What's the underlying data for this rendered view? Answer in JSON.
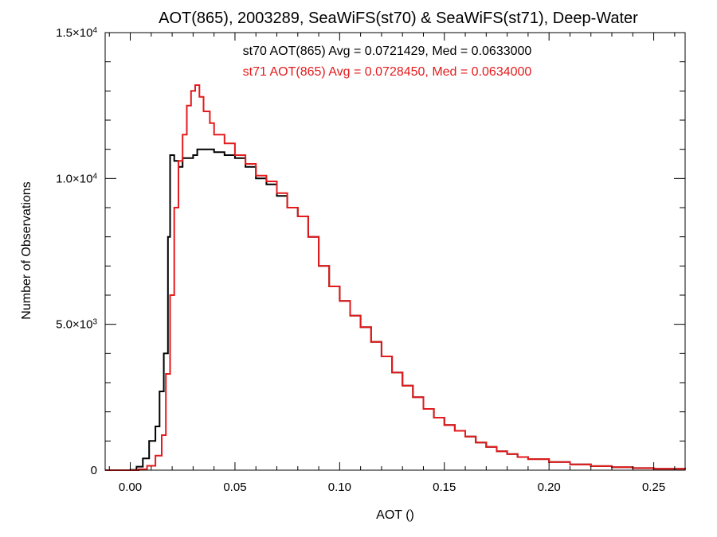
{
  "chart_data": {
    "type": "line",
    "title": "AOT(865), 2003289, SeaWiFS(st70) & SeaWiFS(st71), Deep-Water",
    "xlabel": "AOT ()",
    "ylabel": "Number of Observations",
    "xlim": [
      -0.012,
      0.265
    ],
    "ylim": [
      0,
      15000
    ],
    "x_ticks": [
      0.0,
      0.05,
      0.1,
      0.15,
      0.2,
      0.25
    ],
    "x_tick_labels": [
      "0.00",
      "0.05",
      "0.10",
      "0.15",
      "0.20",
      "0.25"
    ],
    "y_ticks": [
      0,
      5000,
      10000,
      15000
    ],
    "y_tick_labels": [
      {
        "mantissa": "0",
        "exponent": ""
      },
      {
        "mantissa": "5.0×10",
        "exponent": "3"
      },
      {
        "mantissa": "1.0×10",
        "exponent": "4"
      },
      {
        "mantissa": "1.5×10",
        "exponent": "4"
      }
    ],
    "grid": false,
    "step": true,
    "annotations": [
      {
        "text": "st70 AOT(865) Avg = 0.0721429, Med = 0.0633000",
        "color": "#000000"
      },
      {
        "text": "st71 AOT(865) Avg = 0.0728450, Med = 0.0634000",
        "color": "#e41a1c"
      }
    ],
    "series": [
      {
        "color": "#000000",
        "points": [
          [
            -0.012,
            0
          ],
          [
            -0.005,
            0
          ],
          [
            0.0,
            10
          ],
          [
            0.003,
            120
          ],
          [
            0.006,
            400
          ],
          [
            0.009,
            1000
          ],
          [
            0.012,
            1500
          ],
          [
            0.014,
            2700
          ],
          [
            0.016,
            4000
          ],
          [
            0.018,
            8000
          ],
          [
            0.019,
            10800
          ],
          [
            0.021,
            10600
          ],
          [
            0.023,
            10400
          ],
          [
            0.025,
            10700
          ],
          [
            0.03,
            10800
          ],
          [
            0.032,
            11000
          ],
          [
            0.035,
            11000
          ],
          [
            0.04,
            10900
          ],
          [
            0.045,
            10800
          ],
          [
            0.05,
            10700
          ],
          [
            0.055,
            10400
          ],
          [
            0.06,
            10000
          ],
          [
            0.065,
            9800
          ],
          [
            0.07,
            9400
          ],
          [
            0.075,
            9000
          ],
          [
            0.08,
            8700
          ],
          [
            0.085,
            8000
          ],
          [
            0.09,
            7000
          ],
          [
            0.095,
            6300
          ],
          [
            0.1,
            5800
          ],
          [
            0.105,
            5300
          ],
          [
            0.11,
            4900
          ],
          [
            0.115,
            4400
          ],
          [
            0.12,
            3900
          ],
          [
            0.125,
            3350
          ],
          [
            0.13,
            2900
          ],
          [
            0.135,
            2500
          ],
          [
            0.14,
            2100
          ],
          [
            0.145,
            1800
          ],
          [
            0.15,
            1550
          ],
          [
            0.155,
            1350
          ],
          [
            0.16,
            1150
          ],
          [
            0.165,
            950
          ],
          [
            0.17,
            800
          ],
          [
            0.175,
            650
          ],
          [
            0.18,
            550
          ],
          [
            0.185,
            450
          ],
          [
            0.19,
            380
          ],
          [
            0.2,
            280
          ],
          [
            0.21,
            200
          ],
          [
            0.22,
            140
          ],
          [
            0.23,
            100
          ],
          [
            0.24,
            70
          ],
          [
            0.25,
            50
          ],
          [
            0.265,
            20
          ]
        ]
      },
      {
        "color": "#e41a1c",
        "points": [
          [
            -0.012,
            0
          ],
          [
            -0.005,
            0
          ],
          [
            0.0,
            0
          ],
          [
            0.004,
            30
          ],
          [
            0.008,
            150
          ],
          [
            0.012,
            500
          ],
          [
            0.015,
            1200
          ],
          [
            0.017,
            3300
          ],
          [
            0.019,
            6000
          ],
          [
            0.021,
            9000
          ],
          [
            0.023,
            10600
          ],
          [
            0.025,
            11500
          ],
          [
            0.027,
            12500
          ],
          [
            0.029,
            13000
          ],
          [
            0.031,
            13200
          ],
          [
            0.033,
            12800
          ],
          [
            0.035,
            12300
          ],
          [
            0.038,
            11900
          ],
          [
            0.04,
            11500
          ],
          [
            0.045,
            11200
          ],
          [
            0.05,
            10800
          ],
          [
            0.055,
            10500
          ],
          [
            0.06,
            10100
          ],
          [
            0.065,
            9900
          ],
          [
            0.07,
            9500
          ],
          [
            0.075,
            9000
          ],
          [
            0.08,
            8700
          ],
          [
            0.085,
            8000
          ],
          [
            0.09,
            7000
          ],
          [
            0.095,
            6300
          ],
          [
            0.1,
            5800
          ],
          [
            0.105,
            5300
          ],
          [
            0.11,
            4900
          ],
          [
            0.115,
            4400
          ],
          [
            0.12,
            3900
          ],
          [
            0.125,
            3350
          ],
          [
            0.13,
            2900
          ],
          [
            0.135,
            2500
          ],
          [
            0.14,
            2100
          ],
          [
            0.145,
            1800
          ],
          [
            0.15,
            1550
          ],
          [
            0.155,
            1350
          ],
          [
            0.16,
            1150
          ],
          [
            0.165,
            950
          ],
          [
            0.17,
            800
          ],
          [
            0.175,
            650
          ],
          [
            0.18,
            550
          ],
          [
            0.185,
            450
          ],
          [
            0.19,
            380
          ],
          [
            0.2,
            280
          ],
          [
            0.21,
            200
          ],
          [
            0.22,
            140
          ],
          [
            0.23,
            100
          ],
          [
            0.24,
            70
          ],
          [
            0.25,
            50
          ],
          [
            0.265,
            20
          ]
        ]
      }
    ]
  }
}
